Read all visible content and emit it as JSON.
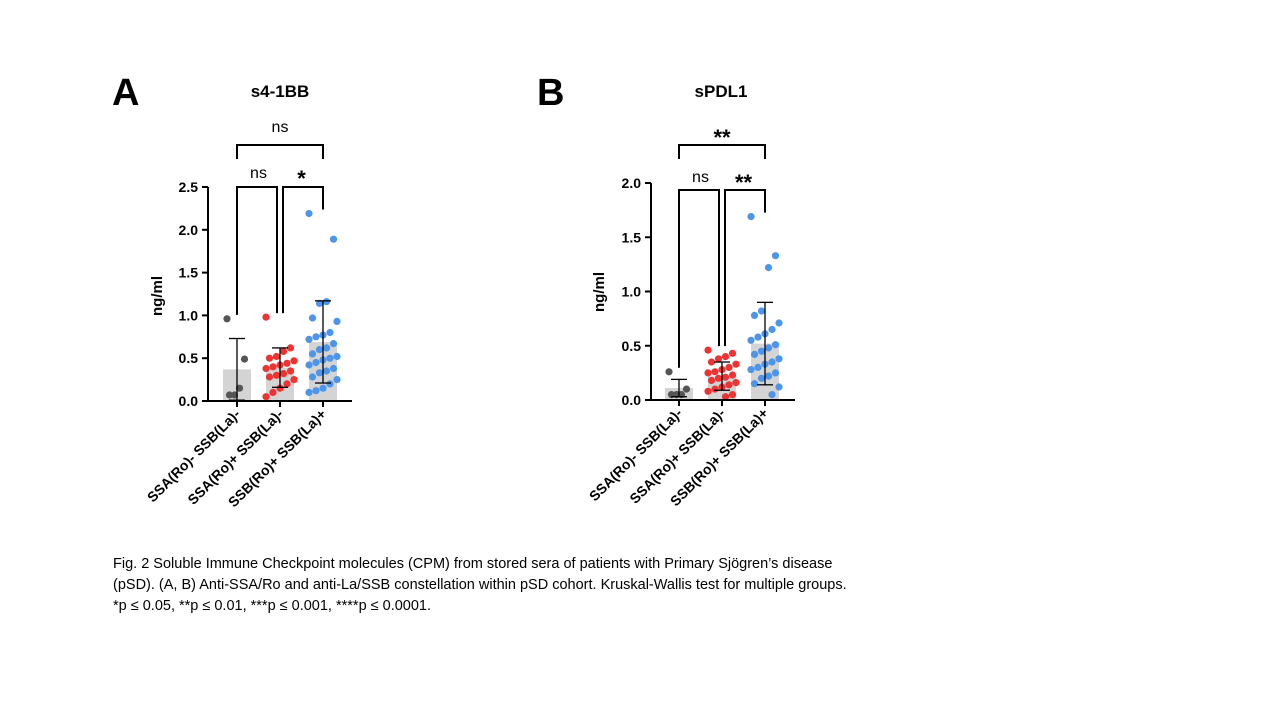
{
  "colors": {
    "group1": "#555555",
    "group2": "#ee3333",
    "group3": "#4c95ea",
    "bar": "#d4d4d4"
  },
  "panels": [
    {
      "letter": "A",
      "title": "s4-1BB",
      "ylabel": "ng/ml",
      "significance": [
        {
          "pair": [
            0,
            2
          ],
          "label": "ns"
        },
        {
          "pair": [
            0,
            1
          ],
          "label": "ns"
        },
        {
          "pair": [
            1,
            2
          ],
          "label": "*"
        }
      ]
    },
    {
      "letter": "B",
      "title": "sPDL1",
      "ylabel": "ng/ml",
      "significance": [
        {
          "pair": [
            0,
            2
          ],
          "label": "**"
        },
        {
          "pair": [
            0,
            1
          ],
          "label": "ns"
        },
        {
          "pair": [
            1,
            2
          ],
          "label": "**"
        }
      ]
    }
  ],
  "chart_data": [
    {
      "type": "bar",
      "title": "s4-1BB",
      "ylabel": "ng/ml",
      "ylim": [
        0,
        2.5
      ],
      "yticks": [
        "0.0",
        "0.5",
        "1.0",
        "1.5",
        "2.0",
        "2.5"
      ],
      "categories": [
        "SSA(Ro)- SSB(La)-",
        "SSA(Ro)+ SSB(La)-",
        "SSB(Ro)+ SSB(La)+"
      ],
      "means": [
        0.37,
        0.39,
        0.69
      ],
      "sd": [
        0.36,
        0.23,
        0.48
      ],
      "points": [
        [
          0.96,
          0.49,
          0.15,
          0.07,
          0.07
        ],
        [
          0.98,
          0.62,
          0.58,
          0.52,
          0.5,
          0.47,
          0.44,
          0.42,
          0.4,
          0.38,
          0.35,
          0.32,
          0.3,
          0.28,
          0.25,
          0.2,
          0.15,
          0.1,
          0.05
        ],
        [
          2.19,
          1.89,
          1.16,
          1.14,
          0.97,
          0.93,
          0.8,
          0.77,
          0.75,
          0.72,
          0.67,
          0.62,
          0.6,
          0.55,
          0.52,
          0.5,
          0.48,
          0.45,
          0.42,
          0.38,
          0.35,
          0.33,
          0.28,
          0.25,
          0.2,
          0.15,
          0.12,
          0.1
        ]
      ]
    },
    {
      "type": "bar",
      "title": "sPDL1",
      "ylabel": "ng/ml",
      "ylim": [
        0,
        2.0
      ],
      "yticks": [
        "0.0",
        "0.5",
        "1.0",
        "1.5",
        "2.0"
      ],
      "categories": [
        "SSA(Ro)- SSB(La)-",
        "SSA(Ro)+ SSB(La)-",
        "SSB(Ro)+ SSB(La)+"
      ],
      "means": [
        0.11,
        0.22,
        0.52
      ],
      "sd": [
        0.08,
        0.13,
        0.38
      ],
      "points": [
        [
          0.26,
          0.1,
          0.05,
          0.05,
          0.05
        ],
        [
          0.46,
          0.43,
          0.4,
          0.38,
          0.35,
          0.33,
          0.3,
          0.28,
          0.26,
          0.25,
          0.23,
          0.21,
          0.2,
          0.18,
          0.16,
          0.14,
          0.12,
          0.1,
          0.08,
          0.05,
          0.03
        ],
        [
          1.69,
          1.33,
          1.22,
          0.82,
          0.78,
          0.71,
          0.65,
          0.61,
          0.58,
          0.55,
          0.51,
          0.48,
          0.45,
          0.42,
          0.38,
          0.35,
          0.33,
          0.3,
          0.28,
          0.25,
          0.22,
          0.2,
          0.15,
          0.12,
          0.05
        ]
      ]
    }
  ],
  "caption": {
    "line1": "Fig. 2 Soluble Immune Checkpoint molecules (CPM) from stored sera of patients with Primary Sjögren’s disease",
    "line2": "(pSD). (A, B) Anti-SSA/Ro and anti-La/SSB constellation within pSD cohort. Kruskal-Wallis test for multiple groups.",
    "line3": "*p ≤ 0.05, **p ≤ 0.01, ***p ≤ 0.001, ****p ≤ 0.0001."
  }
}
